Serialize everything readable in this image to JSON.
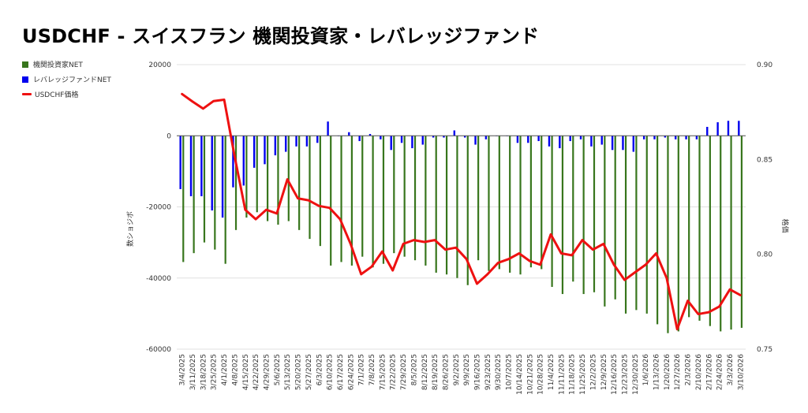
{
  "title": "USDCHF - スイスフラン 機関投資家・レバレッジファンド",
  "legend": {
    "inst_label": "機関投資家NET",
    "lev_label": "レバレッジファンドNET",
    "price_label": "USDCHF価格"
  },
  "colors": {
    "inst": "#38761d",
    "lev": "#0000ee",
    "price": "#ee1111",
    "grid": "#e0e0e0",
    "zero": "#555555"
  },
  "chart_data": {
    "type": "bar",
    "title": "USDCHF - スイスフラン 機関投資家・レバレッジファンド",
    "categories": [
      "3/4/2025",
      "3/11/2025",
      "3/18/2025",
      "3/25/2025",
      "4/1/2025",
      "4/8/2025",
      "4/15/2025",
      "4/22/2025",
      "4/29/2025",
      "5/6/2025",
      "5/13/2025",
      "5/20/2025",
      "5/27/2025",
      "6/3/2025",
      "6/10/2025",
      "6/17/2025",
      "6/24/2025",
      "7/1/2025",
      "7/8/2025",
      "7/15/2025",
      "7/22/2025",
      "7/29/2025",
      "8/5/2025",
      "8/12/2025",
      "8/19/2025",
      "8/26/2025",
      "9/2/2025",
      "9/9/2025",
      "9/16/2025",
      "9/23/2025",
      "9/30/2025",
      "10/7/2025",
      "10/14/2025",
      "10/21/2025",
      "10/28/2025",
      "11/4/2025",
      "11/11/2025",
      "11/18/2025",
      "11/25/2025",
      "12/2/2025",
      "12/9/2025",
      "12/16/2025",
      "12/23/2025",
      "12/30/2025",
      "1/6/2026",
      "1/13/2026",
      "1/20/2026",
      "1/27/2026",
      "2/3/2026",
      "2/10/2026",
      "2/17/2026",
      "2/24/2026",
      "3/3/2026",
      "3/10/2026"
    ],
    "x_labels": [
      "3/4/2025",
      "3/11/2025",
      "3/18/2025",
      "3/25/2025",
      "4/1/2025",
      "4/8/2025",
      "4/15/2025",
      "4/22/2025",
      "4/29/2025",
      "5/6/2025",
      "5/13/2025",
      "5/20/2025",
      "5/27/2025",
      "6/3/2025",
      "6/10/2025",
      "6/17/2025",
      "6/24/2025",
      "7/1/2025",
      "7/8/2025",
      "7/15/2025",
      "7/22/2025",
      "7/29/2025",
      "8/5/2025",
      "8/12/2025",
      "8/19/2025",
      "8/26/2025",
      "9/2/2025",
      "9/9/2025",
      "9/16/2025",
      "9/23/2025",
      "9/30/2025",
      "10/7/2025",
      "10/14/2025",
      "10/21/2025",
      "10/28/2025",
      "11/4/2025",
      "11/11/2025",
      "11/18/2025",
      "11/25/2025",
      "12/2/2025",
      "12/9/2025",
      "12/16/2025",
      "12/23/2025",
      "12/30/2025",
      "1/6/2026",
      "1/13/2026",
      "1/20/2026",
      "1/27/2026",
      "2/3/2026",
      "2/10/2026",
      "2/17/2026",
      "2/24/2026",
      "3/3/2026",
      "3/10/2026"
    ],
    "series": [
      {
        "name": "機関投資家NET",
        "type": "bar",
        "axis": "left",
        "values": [
          -35500,
          -33000,
          -30000,
          -32000,
          -36000,
          -26500,
          -23000,
          -21500,
          -24000,
          -25000,
          -24000,
          -26500,
          -29000,
          -31000,
          -36500,
          -35500,
          -36500,
          -34000,
          -37000,
          -36000,
          -33000,
          -34000,
          -35000,
          -36500,
          -38500,
          -39000,
          -40000,
          -42000,
          -35000,
          -38000,
          -37500,
          -38500,
          -39000,
          -37000,
          -37500,
          -42500,
          -44500,
          -41000,
          -44500,
          -44000,
          -48000,
          -46000,
          -50000,
          -49000,
          -50000,
          -53000,
          -55500,
          -55000,
          -51000,
          -52000,
          -53500,
          -55000,
          -54500,
          -54000
        ]
      },
      {
        "name": "レバレッジファンドNET",
        "type": "bar",
        "axis": "left",
        "values": [
          -15000,
          -17000,
          -17000,
          -21000,
          -23000,
          -14500,
          -14000,
          -9000,
          -8000,
          -5500,
          -4500,
          -3000,
          -3000,
          -2000,
          4000,
          0,
          1000,
          -1500,
          500,
          -1000,
          -4000,
          -2000,
          -3500,
          -2500,
          -500,
          -500,
          1500,
          -500,
          -2500,
          -1000,
          0,
          0,
          -2000,
          -2000,
          -1500,
          -3000,
          -3500,
          -1500,
          -1000,
          -3000,
          -2500,
          -4000,
          -4000,
          -4500,
          -1000,
          -1000,
          -500,
          -1000,
          -1000,
          -1000,
          2500,
          3800,
          4200,
          4200
        ]
      },
      {
        "name": "USDCHF価格",
        "type": "line",
        "axis": "right",
        "values": [
          0.8845,
          0.8805,
          0.8768,
          0.8808,
          0.8815,
          0.8515,
          0.8235,
          0.8185,
          0.8235,
          0.8215,
          0.8395,
          0.8295,
          0.8285,
          0.8255,
          0.8245,
          0.8185,
          0.8055,
          0.7895,
          0.7935,
          0.8015,
          0.7915,
          0.8055,
          0.8075,
          0.8065,
          0.8075,
          0.8025,
          0.8035,
          0.7975,
          0.7845,
          0.7895,
          0.7955,
          0.7975,
          0.8005,
          0.7965,
          0.7945,
          0.8105,
          0.8005,
          0.7995,
          0.8075,
          0.8025,
          0.8055,
          0.7945,
          0.7865,
          0.7905,
          0.7945,
          0.8005,
          0.7875,
          0.7605,
          0.7755,
          0.7685,
          0.7695,
          0.7725,
          0.7815,
          0.7785
        ]
      }
    ],
    "y_left": {
      "label": "数ショジボ",
      "min": -60000,
      "max": 20000,
      "ticks": [
        20000,
        0,
        -20000,
        -40000,
        -60000
      ]
    },
    "y_right": {
      "label": "格価",
      "min": 0.75,
      "max": 0.9,
      "ticks": [
        0.9,
        0.85,
        0.8,
        0.75
      ]
    },
    "grid": true,
    "legend_position": "top-left"
  }
}
